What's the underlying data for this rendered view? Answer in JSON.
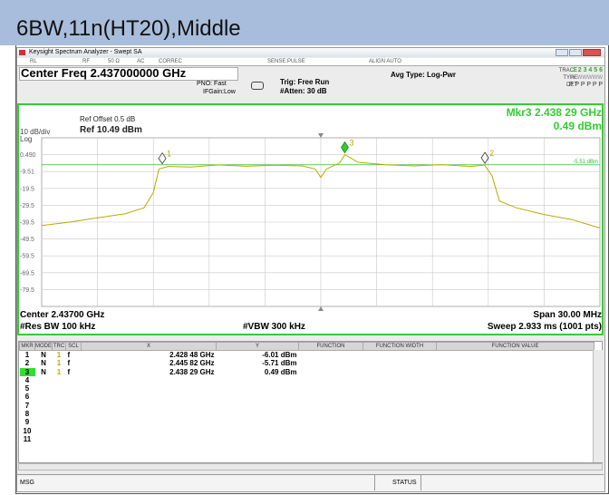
{
  "page_title": "6BW,11n(HT20),Middle",
  "window": {
    "title": "Keysight Spectrum Analyzer - Swept SA",
    "settings_row": [
      "RL",
      "RF",
      "50 Ω",
      "AC",
      "CORREC",
      "SENSE:PULSE",
      "ALIGN AUTO"
    ],
    "center_freq": "Center Freq 2.437000000 GHz",
    "pno": "PNO: Fast",
    "ifgain": "IFGain:Low",
    "trig": "Trig: Free Run",
    "atten": "#Atten: 30 dB",
    "avg_type": "Avg Type: Log-Pwr",
    "trace_label": "TRACE",
    "trace_nums": "1 2 3 4 5 6",
    "type_label": "TYPE",
    "type_vals": "M WWWWW",
    "det_label": "DET",
    "det_vals": "P P P P P P"
  },
  "chart_data": {
    "type": "line",
    "scale": "10 dB/div",
    "scale_type": "Log",
    "ref_offset": "Ref Offset 0.5 dB",
    "ref_level": "Ref 10.49 dBm",
    "marker_readout": "Mkr3 2.438 29 GHz",
    "marker_readout_value": "0.49 dBm",
    "center": "Center 2.43700 GHz",
    "span": "Span 30.00 MHz",
    "res_bw": "#Res BW 100 kHz",
    "vbw": "#VBW 300 kHz",
    "sweep": "Sweep  2.933 ms (1001 pts)",
    "color": "#b5ad00",
    "xlim": [
      2.422,
      2.452
    ],
    "ylim": [
      -89.51,
      10.49
    ],
    "yticks": [
      {
        "value": 0.49,
        "label": "0.490"
      },
      -9.51,
      {
        "value": -19.51,
        "label": "-19.5"
      },
      {
        "value": -29.51,
        "label": "-29.5"
      },
      {
        "value": -39.51,
        "label": "-39.5"
      },
      {
        "value": -49.51,
        "label": "-49.5"
      },
      {
        "value": -59.51,
        "label": "-59.5"
      },
      {
        "value": -69.51,
        "label": "-69.5"
      },
      {
        "value": -79.51,
        "label": "-79.5"
      }
    ],
    "grid": true,
    "display_line": {
      "value": -5.51,
      "label": "-5.51 dBm",
      "color": "#33bb33"
    },
    "x": [
      2.422,
      2.4235,
      2.425,
      2.4265,
      2.4275,
      2.428,
      2.4283,
      2.4288,
      2.43,
      2.4315,
      2.433,
      2.4345,
      2.436,
      2.4367,
      2.437,
      2.4373,
      2.438,
      2.4383,
      2.439,
      2.4405,
      2.442,
      2.4435,
      2.445,
      2.4458,
      2.4462,
      2.4466,
      2.4475,
      2.449,
      2.4505,
      2.452
    ],
    "values": [
      -41.5,
      -39.5,
      -37,
      -34.5,
      -31,
      -22,
      -8,
      -6.5,
      -6.8,
      -5.6,
      -6.4,
      -5.8,
      -6.2,
      -8,
      -13,
      -8,
      -4.5,
      0.49,
      -4,
      -5.5,
      -6.2,
      -5.4,
      -6.5,
      -5.7,
      -12,
      -27,
      -31,
      -35,
      -38,
      -43
    ],
    "markers": [
      {
        "label": "1",
        "x": 2.42848,
        "y": -6.01
      },
      {
        "label": "2",
        "x": 2.44582,
        "y": -5.71
      },
      {
        "label": "3",
        "x": 2.43829,
        "y": 0.49
      }
    ]
  },
  "marker_table": {
    "headers": [
      "MKR",
      "MODE",
      "TRC",
      "SCL",
      "X",
      "Y",
      "FUNCTION",
      "FUNCTION WIDTH",
      "FUNCTION VALUE"
    ],
    "rows": [
      {
        "mkr": "1",
        "mode": "N",
        "trc": "1",
        "scl": "f",
        "x": "2.428 48 GHz",
        "y": "-6.01 dBm"
      },
      {
        "mkr": "2",
        "mode": "N",
        "trc": "1",
        "scl": "f",
        "x": "2.445 82 GHz",
        "y": "-5.71 dBm"
      },
      {
        "mkr": "3",
        "mode": "N",
        "trc": "1",
        "scl": "f",
        "x": "2.438 29 GHz",
        "y": "0.49 dBm"
      },
      {
        "mkr": "4"
      },
      {
        "mkr": "5"
      },
      {
        "mkr": "6"
      },
      {
        "mkr": "7"
      },
      {
        "mkr": "8"
      },
      {
        "mkr": "9"
      },
      {
        "mkr": "10"
      },
      {
        "mkr": "11"
      }
    ]
  },
  "status_bar": {
    "msg": "MSG",
    "status": "STATUS"
  }
}
